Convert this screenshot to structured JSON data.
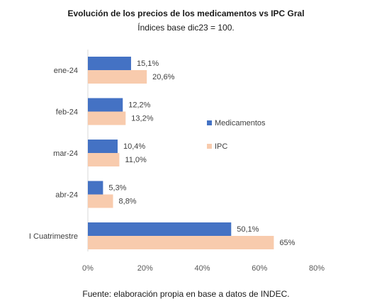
{
  "chart_data": {
    "type": "bar",
    "orientation": "horizontal",
    "title": "Evolución de los precios de los medicamentos vs IPC Gral",
    "subtitle": "Índices base dic23 = 100.",
    "categories": [
      "ene-24",
      "feb-24",
      "mar-24",
      "abr-24",
      "I Cuatrimestre"
    ],
    "series": [
      {
        "name": "Medicamentos",
        "color": "#4472C4",
        "values": [
          15.1,
          12.2,
          10.4,
          5.3,
          50.1
        ],
        "labels": [
          "15,1%",
          "12,2%",
          "10,4%",
          "5,3%",
          "50,1%"
        ]
      },
      {
        "name": "IPC",
        "color": "#F8CBAD",
        "values": [
          20.6,
          13.2,
          11.0,
          8.8,
          65
        ],
        "labels": [
          "20,6%",
          "13,2%",
          "11,0%",
          "8,8%",
          "65%"
        ]
      }
    ],
    "xlim": [
      0,
      80
    ],
    "xticks": [
      0,
      20,
      40,
      60,
      80
    ],
    "xtick_labels": [
      "0%",
      "20%",
      "40%",
      "60%",
      "80%"
    ],
    "grid": false,
    "legend_position": "right"
  },
  "source": "Fuente: elaboración propia en base a datos de INDEC."
}
